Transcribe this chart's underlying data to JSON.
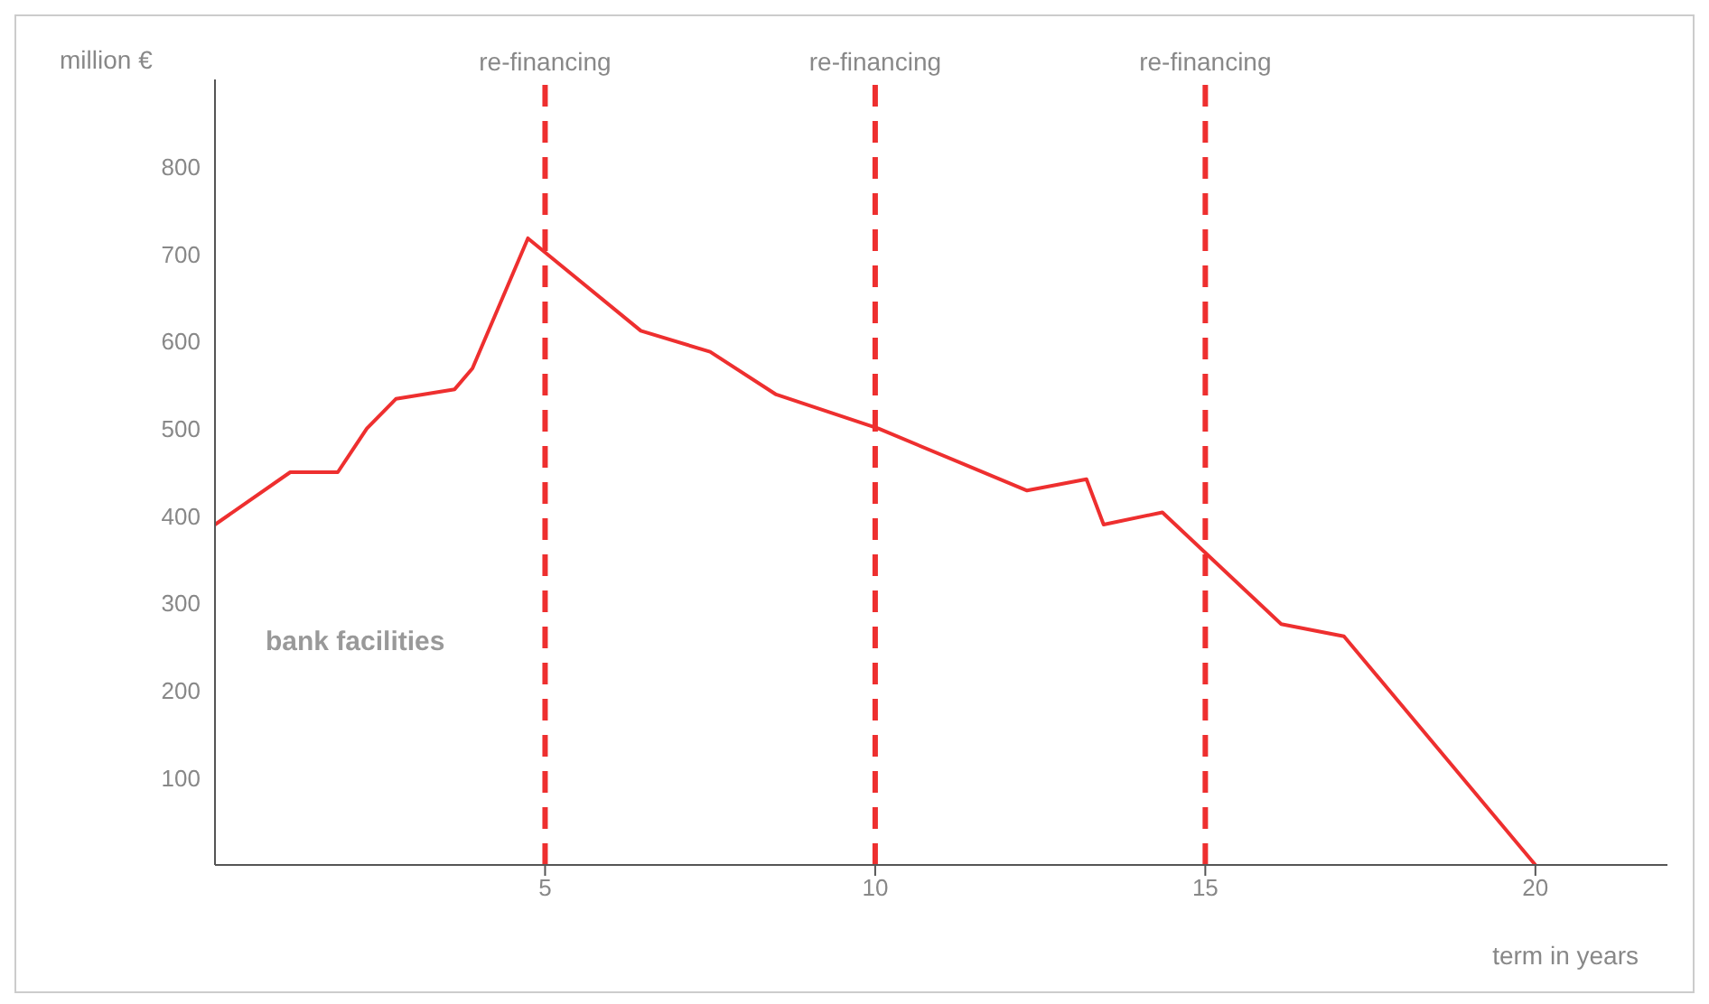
{
  "chart_data": {
    "type": "line",
    "ylabel": "million €",
    "xlabel": "term in years",
    "x": [
      0,
      1.14,
      1.86,
      2.3,
      2.74,
      3.63,
      3.9,
      4.74,
      6.45,
      7.5,
      8.5,
      10.05,
      12.3,
      13.2,
      13.46,
      14.35,
      16.15,
      17.1,
      20
    ],
    "series": [
      {
        "color": "#ee2f2f",
        "values": [
          390,
          450,
          450,
          500,
          534,
          545,
          569,
          718,
          612,
          588,
          539,
          500,
          429,
          442,
          390,
          404,
          276,
          262,
          0
        ]
      }
    ],
    "xlim": [
      0,
      22
    ],
    "xticks": [
      5,
      10,
      15,
      20
    ],
    "ylim": [
      0,
      900
    ],
    "yticks": [
      100,
      200,
      300,
      400,
      500,
      600,
      700,
      800
    ],
    "grid": false,
    "legend": false,
    "marker": "none",
    "line_style": "solid",
    "ref_lines": [
      {
        "axis": "x",
        "value": 5,
        "label": "re-financing",
        "color": "#ee2f2f",
        "line_style": "dashed"
      },
      {
        "axis": "x",
        "value": 10,
        "label": "re-financing",
        "color": "#ee2f2f",
        "line_style": "dashed"
      },
      {
        "axis": "x",
        "value": 15,
        "label": "re-financing",
        "color": "#ee2f2f",
        "line_style": "dashed"
      }
    ],
    "annotations": [
      "bank facilities"
    ]
  }
}
